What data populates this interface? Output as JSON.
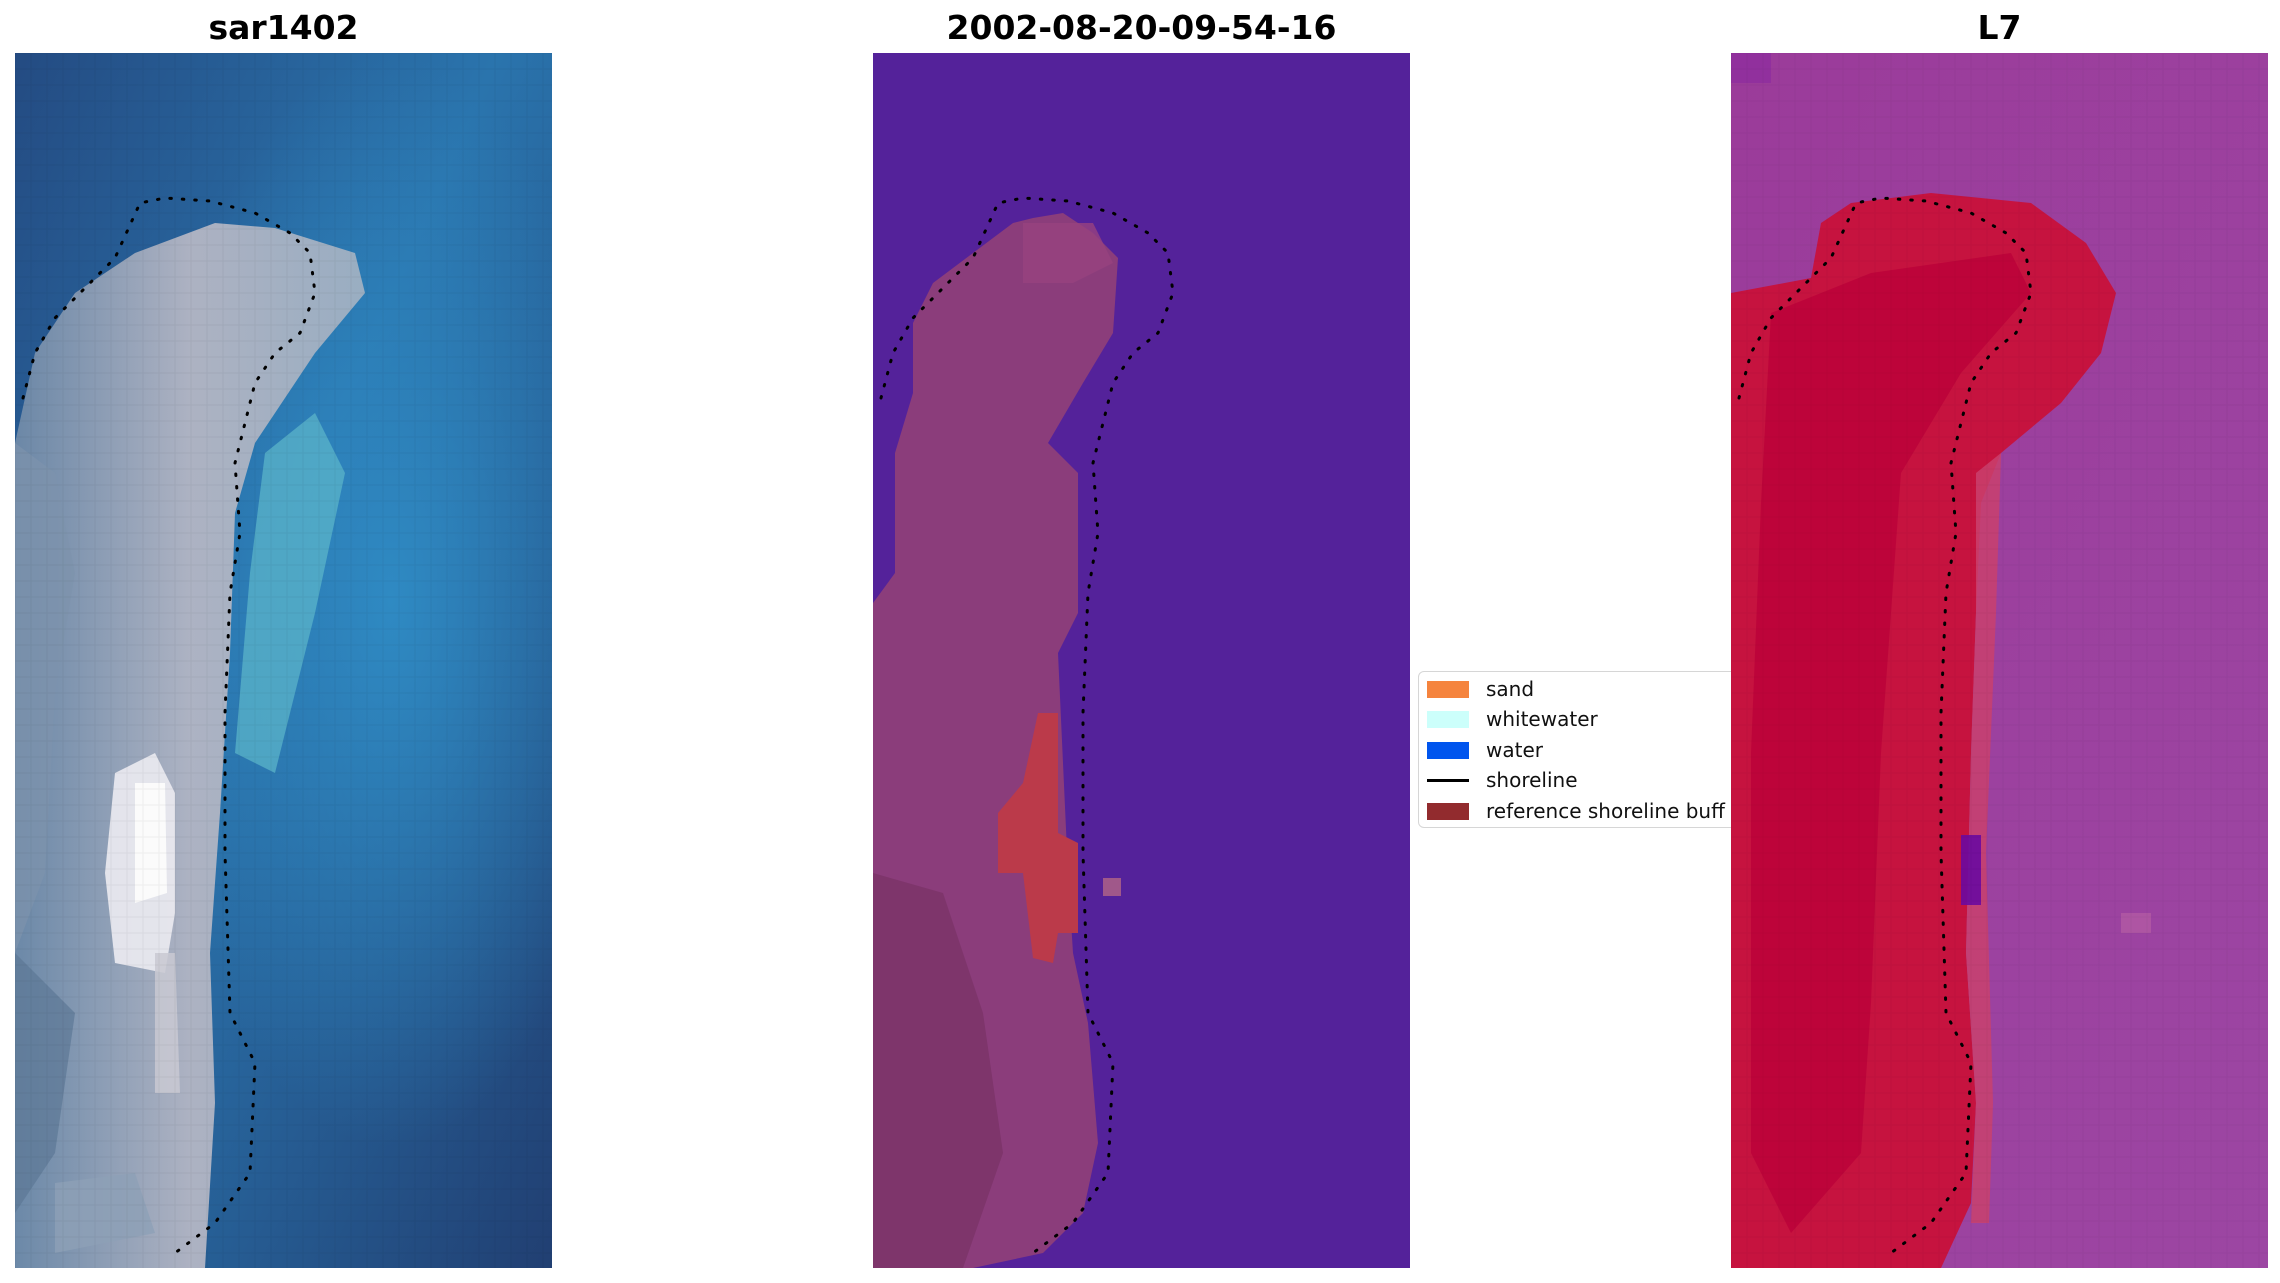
{
  "panels": [
    {
      "title": "sar1402",
      "kind": "rgb-satellite-image"
    },
    {
      "title": "2002-08-20-09-54-16",
      "kind": "classification-image"
    },
    {
      "title": "L7",
      "kind": "probability-image"
    }
  ],
  "legend": {
    "items": [
      {
        "label": "sand",
        "color": "#f5843e",
        "type": "patch"
      },
      {
        "label": "whitewater",
        "color": "#ccfffb",
        "type": "patch"
      },
      {
        "label": "water",
        "color": "#0055ee",
        "type": "patch"
      },
      {
        "label": "shoreline",
        "color": "#000000",
        "type": "line"
      },
      {
        "label": "reference shoreline buff",
        "color": "#922b2e",
        "type": "patch"
      }
    ]
  },
  "colors": {
    "ocean_dark": "#23477a",
    "ocean_teal": "#2e8fbf",
    "sand_gray": "#a7a8b8",
    "class_water": "#54229a",
    "class_land": "#8b3d7b",
    "class_buffer": "#bb3a4a",
    "prob_land": "#c2093f",
    "prob_water": "#9a42a0"
  }
}
